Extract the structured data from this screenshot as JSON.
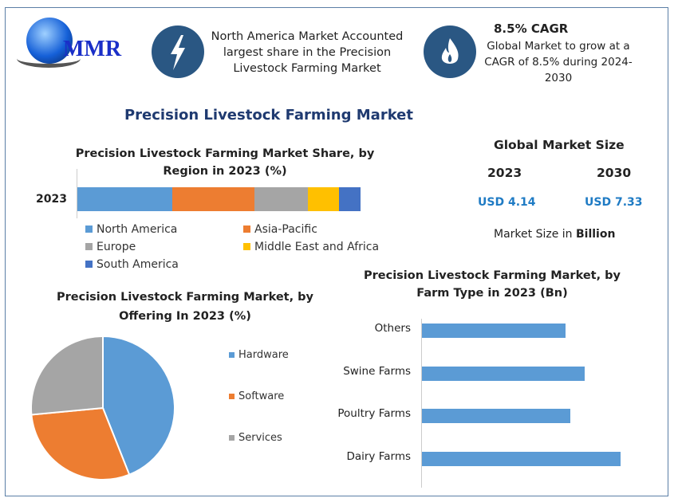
{
  "logo": {
    "text": "MMR"
  },
  "highlight1": {
    "icon": "lightning-icon",
    "text": "North America Market Accounted largest share in the Precision Livestock Farming Market"
  },
  "highlight2": {
    "icon": "flame-icon",
    "title": "8.5% CAGR",
    "text": "Global Market to grow at a CAGR of 8.5% during 2024-2030"
  },
  "main_title": "Precision Livestock Farming Market",
  "market_size": {
    "title": "Global Market Size",
    "year1": "2023",
    "year2": "2030",
    "value1": "USD 4.14",
    "value2": "USD 7.33",
    "note_prefix": "Market Size in ",
    "note_bold": "Billion",
    "value_color": "#1f7bc4"
  },
  "chart_data": [
    {
      "type": "bar",
      "orientation": "horizontal-stacked",
      "title": "Precision Livestock Farming Market Share, by Region in 2023 (%)",
      "categories": [
        "2023"
      ],
      "series": [
        {
          "name": "North America",
          "values": [
            33.5
          ],
          "color": "#5b9bd5"
        },
        {
          "name": "Asia-Pacific",
          "values": [
            29
          ],
          "color": "#ed7d31"
        },
        {
          "name": "Europe",
          "values": [
            19
          ],
          "color": "#a5a5a5"
        },
        {
          "name": "Middle East and Africa",
          "values": [
            11
          ],
          "color": "#ffc000"
        },
        {
          "name": "South America",
          "values": [
            7.5
          ],
          "color": "#4472c4"
        }
      ],
      "legend": "bottom"
    },
    {
      "type": "pie",
      "title": "Precision Livestock Farming Market, by Offering In 2023 (%)",
      "labels": [
        "Hardware",
        "Software",
        "Services"
      ],
      "values": [
        44,
        29.5,
        26.5
      ],
      "colors": [
        "#5b9bd5",
        "#ed7d31",
        "#a5a5a5"
      ],
      "legend": "right"
    },
    {
      "type": "bar",
      "orientation": "horizontal",
      "title": "Precision Livestock Farming Market, by Farm Type in 2023 (Bn)",
      "categories": [
        "Others",
        "Swine Farms",
        "Poultry Farms",
        "Dairy Farms"
      ],
      "values": [
        0.91,
        1.03,
        0.94,
        1.26
      ],
      "color": "#5b9bd5"
    }
  ]
}
